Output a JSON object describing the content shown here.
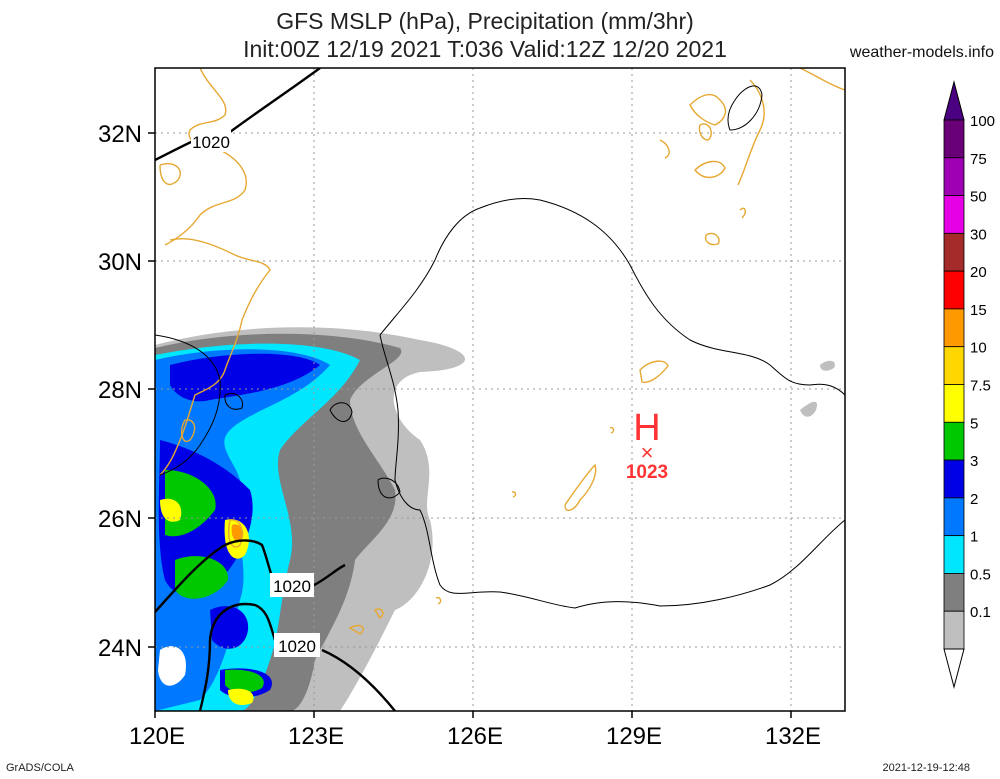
{
  "title_line1": "GFS MSLP (hPa), Precipitation (mm/3hr)",
  "title_line2": "Init:00Z 12/19 2021 T:036 Valid:12Z 12/20 2021",
  "credit": "weather-models.info",
  "footer_left": "GrADS/COLA",
  "footer_right": "2021-12-19-12:48",
  "map": {
    "lat_ticks": [
      "32N",
      "30N",
      "28N",
      "26N",
      "24N"
    ],
    "lon_ticks": [
      "120E",
      "123E",
      "126E",
      "129E",
      "132E"
    ],
    "lon_range": [
      120,
      133
    ],
    "lat_range": [
      23,
      33
    ],
    "isobar_labels": [
      "1020",
      "1020",
      "1020"
    ],
    "high_center": {
      "symbol": "H",
      "marker": "×",
      "value": "1023"
    }
  },
  "legend": {
    "levels": [
      {
        "label": "100",
        "color": "#6a0078"
      },
      {
        "label": "75",
        "color": "#a000b4"
      },
      {
        "label": "50",
        "color": "#e600e6"
      },
      {
        "label": "30",
        "color": "#a52a2a"
      },
      {
        "label": "20",
        "color": "#ff0000"
      },
      {
        "label": "15",
        "color": "#ff9900"
      },
      {
        "label": "10",
        "color": "#ffd700"
      },
      {
        "label": "7.5",
        "color": "#ffff00"
      },
      {
        "label": "5",
        "color": "#00c800"
      },
      {
        "label": "3",
        "color": "#0000e6"
      },
      {
        "label": "2",
        "color": "#0078ff"
      },
      {
        "label": "1",
        "color": "#00e6ff"
      },
      {
        "label": "0.5",
        "color": "#7f7f7f"
      },
      {
        "label": "0.1",
        "color": "#bfbfbf"
      }
    ],
    "top_color": "#4b0082"
  },
  "colors": {
    "coast": "#e6a832",
    "high": "#ff3333",
    "isobar": "#000000",
    "grid": "#999999"
  }
}
